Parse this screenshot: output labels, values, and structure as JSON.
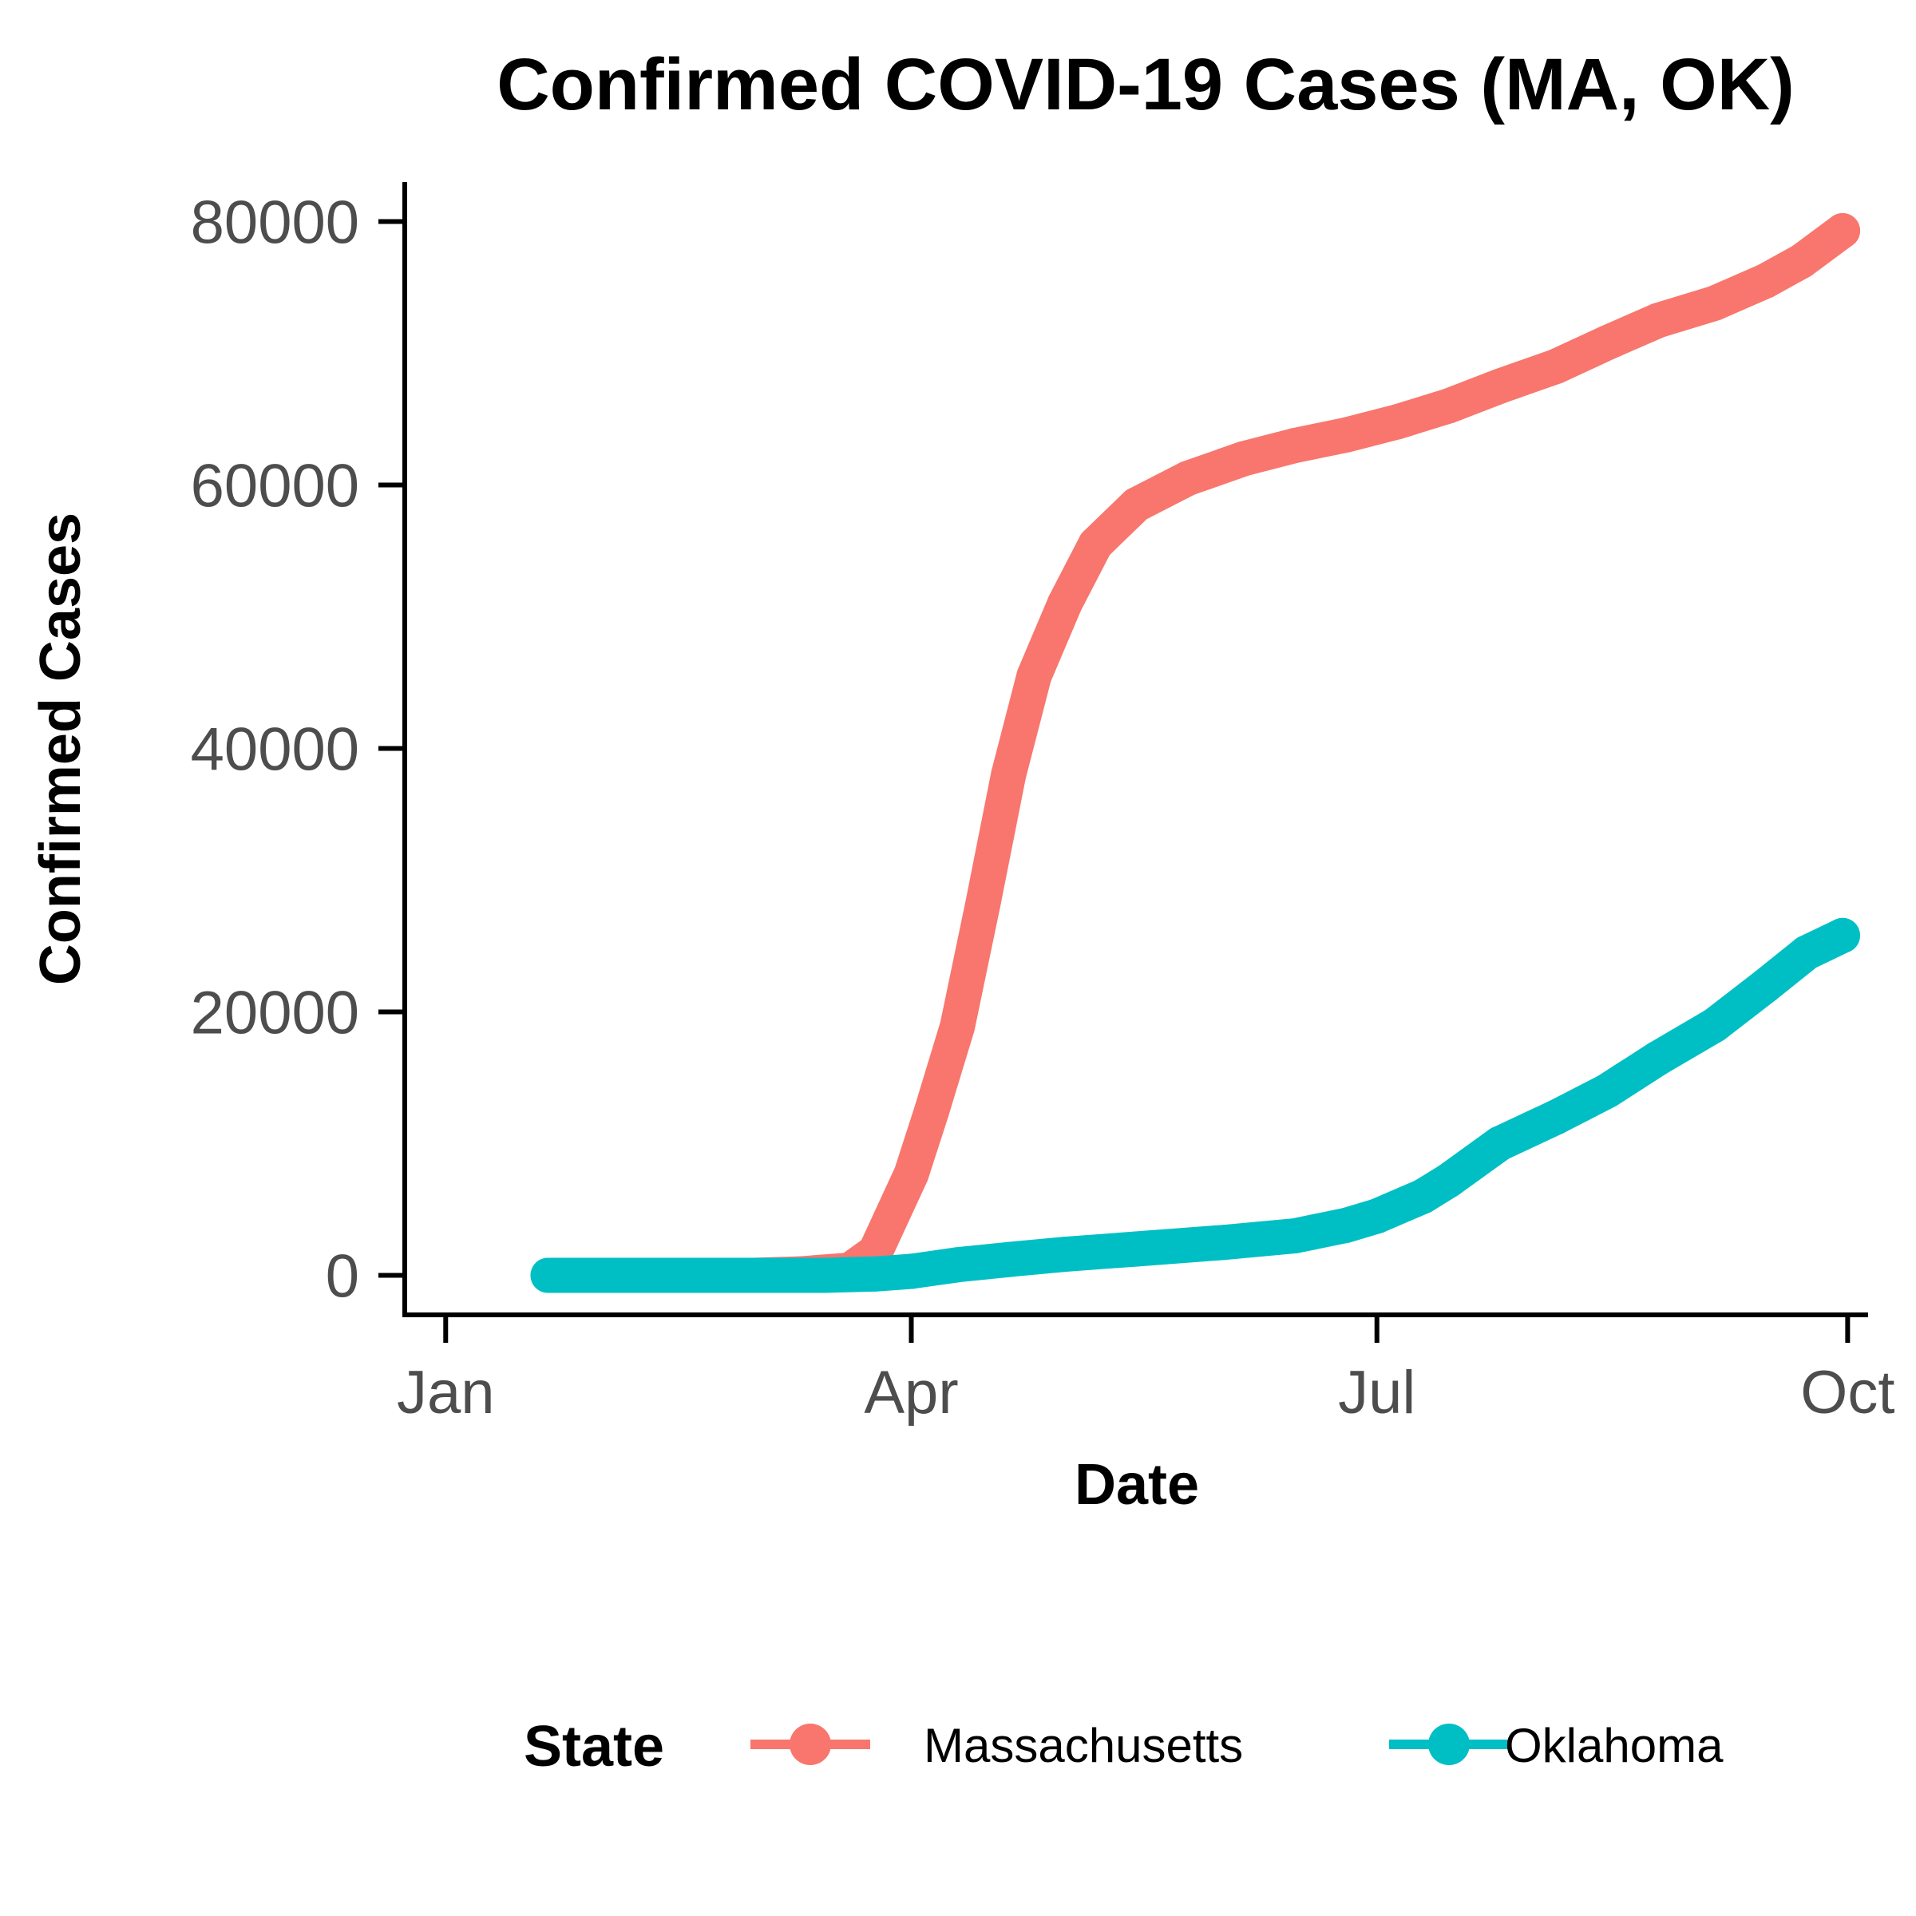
{
  "chart_data": {
    "type": "line",
    "title": "Confirmed COVID-19 Cases (MA, OK)",
    "xlabel": "Date",
    "ylabel": "Confirmed Cases",
    "x_ticks": [
      {
        "label": "Jan",
        "date": "2020-01-01"
      },
      {
        "label": "Apr",
        "date": "2020-04-01"
      },
      {
        "label": "Jul",
        "date": "2020-07-01"
      },
      {
        "label": "Oct",
        "date": "2020-10-01"
      }
    ],
    "y_ticks": [
      0,
      20000,
      40000,
      60000,
      80000
    ],
    "xlim": [
      "2019-12-24",
      "2020-10-05"
    ],
    "ylim": [
      -3000,
      83000
    ],
    "grid": false,
    "legend": {
      "title": "State",
      "position": "bottom"
    },
    "series": [
      {
        "name": "Massachusetts",
        "color": "#F8766D",
        "points": [
          [
            "2020-02-01",
            0
          ],
          [
            "2020-03-01",
            0
          ],
          [
            "2020-03-10",
            100
          ],
          [
            "2020-03-20",
            400
          ],
          [
            "2020-03-25",
            1800
          ],
          [
            "2020-04-01",
            7700
          ],
          [
            "2020-04-05",
            12500
          ],
          [
            "2020-04-10",
            18900
          ],
          [
            "2020-04-15",
            28200
          ],
          [
            "2020-04-20",
            38000
          ],
          [
            "2020-04-25",
            45500
          ],
          [
            "2020-05-01",
            51000
          ],
          [
            "2020-05-07",
            55500
          ],
          [
            "2020-05-15",
            58500
          ],
          [
            "2020-05-25",
            60500
          ],
          [
            "2020-06-05",
            62000
          ],
          [
            "2020-06-15",
            63000
          ],
          [
            "2020-06-25",
            63800
          ],
          [
            "2020-07-05",
            64800
          ],
          [
            "2020-07-15",
            66000
          ],
          [
            "2020-07-25",
            67500
          ],
          [
            "2020-08-05",
            69000
          ],
          [
            "2020-08-15",
            70800
          ],
          [
            "2020-08-25",
            72500
          ],
          [
            "2020-09-05",
            73800
          ],
          [
            "2020-09-15",
            75500
          ],
          [
            "2020-09-22",
            77000
          ],
          [
            "2020-09-30",
            79300
          ]
        ]
      },
      {
        "name": "Oklahoma",
        "color": "#00BFC4",
        "points": [
          [
            "2020-01-21",
            0
          ],
          [
            "2020-02-15",
            0
          ],
          [
            "2020-03-15",
            0
          ],
          [
            "2020-03-25",
            100
          ],
          [
            "2020-04-01",
            300
          ],
          [
            "2020-04-10",
            800
          ],
          [
            "2020-04-20",
            1200
          ],
          [
            "2020-05-01",
            1600
          ],
          [
            "2020-05-15",
            2000
          ],
          [
            "2020-06-01",
            2500
          ],
          [
            "2020-06-15",
            3000
          ],
          [
            "2020-06-25",
            3800
          ],
          [
            "2020-07-01",
            4500
          ],
          [
            "2020-07-10",
            6000
          ],
          [
            "2020-07-15",
            7200
          ],
          [
            "2020-07-25",
            10000
          ],
          [
            "2020-08-05",
            12000
          ],
          [
            "2020-08-15",
            14000
          ],
          [
            "2020-08-25",
            16500
          ],
          [
            "2020-09-05",
            19000
          ],
          [
            "2020-09-15",
            22000
          ],
          [
            "2020-09-23",
            24500
          ],
          [
            "2020-09-30",
            25800
          ]
        ]
      }
    ]
  }
}
